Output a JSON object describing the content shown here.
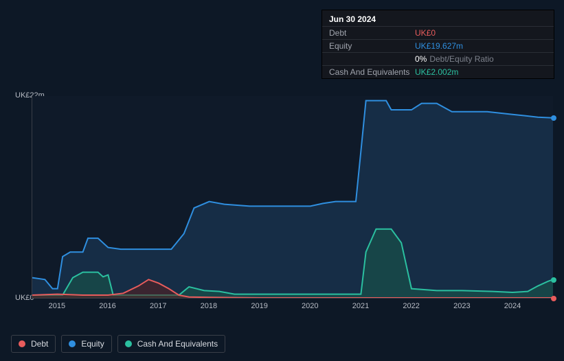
{
  "tooltip": {
    "date": "Jun 30 2024",
    "rows": [
      {
        "label": "Debt",
        "value": "UK£0",
        "color": "#e85c5c"
      },
      {
        "label": "Equity",
        "value": "UK£19.627m",
        "color": "#2f8fe0"
      },
      {
        "label": "",
        "value": "0%",
        "suffix": "Debt/Equity Ratio",
        "color": "#ffffff"
      },
      {
        "label": "Cash And Equivalents",
        "value": "UK£2.002m",
        "color": "#2bc0a0"
      }
    ]
  },
  "chart": {
    "type": "area",
    "background_color": "#0f1a29",
    "grid_color": "#3a3f48",
    "ylim": [
      0,
      22
    ],
    "y_ticks": [
      {
        "v": 22,
        "label": "UK£22m"
      },
      {
        "v": 0,
        "label": "UK£0"
      }
    ],
    "xlim": [
      2014.5,
      2024.8
    ],
    "x_ticks": [
      "2015",
      "2016",
      "2017",
      "2018",
      "2019",
      "2020",
      "2021",
      "2022",
      "2023",
      "2024"
    ],
    "series": {
      "equity": {
        "label": "Equity",
        "stroke": "#2f8fe0",
        "fill": "#1a3a5a",
        "fill_opacity": 0.6,
        "line_width": 2,
        "points": [
          [
            2014.5,
            2.2
          ],
          [
            2014.75,
            2.0
          ],
          [
            2014.9,
            1.0
          ],
          [
            2015.0,
            1.0
          ],
          [
            2015.1,
            4.5
          ],
          [
            2015.25,
            5.0
          ],
          [
            2015.5,
            5.0
          ],
          [
            2015.6,
            6.5
          ],
          [
            2015.8,
            6.5
          ],
          [
            2016.0,
            5.5
          ],
          [
            2016.25,
            5.3
          ],
          [
            2016.5,
            5.3
          ],
          [
            2016.8,
            5.3
          ],
          [
            2017.25,
            5.3
          ],
          [
            2017.5,
            7.0
          ],
          [
            2017.7,
            9.8
          ],
          [
            2018.0,
            10.5
          ],
          [
            2018.3,
            10.2
          ],
          [
            2018.8,
            10.0
          ],
          [
            2019.5,
            10.0
          ],
          [
            2020.0,
            10.0
          ],
          [
            2020.25,
            10.3
          ],
          [
            2020.5,
            10.5
          ],
          [
            2020.9,
            10.5
          ],
          [
            2021.0,
            16.0
          ],
          [
            2021.1,
            21.5
          ],
          [
            2021.5,
            21.5
          ],
          [
            2021.6,
            20.5
          ],
          [
            2022.0,
            20.5
          ],
          [
            2022.2,
            21.2
          ],
          [
            2022.5,
            21.2
          ],
          [
            2022.8,
            20.3
          ],
          [
            2023.5,
            20.3
          ],
          [
            2024.0,
            20.0
          ],
          [
            2024.5,
            19.7
          ],
          [
            2024.8,
            19.627
          ]
        ]
      },
      "cash": {
        "label": "Cash And Equivalents",
        "stroke": "#2bc0a0",
        "fill": "#1a5a4a",
        "fill_opacity": 0.55,
        "line_width": 2,
        "points": [
          [
            2014.5,
            0.3
          ],
          [
            2014.9,
            0.3
          ],
          [
            2015.1,
            0.3
          ],
          [
            2015.3,
            2.2
          ],
          [
            2015.5,
            2.8
          ],
          [
            2015.8,
            2.8
          ],
          [
            2015.9,
            2.3
          ],
          [
            2016.0,
            2.5
          ],
          [
            2016.1,
            0.3
          ],
          [
            2016.5,
            0.3
          ],
          [
            2017.0,
            0.3
          ],
          [
            2017.4,
            0.3
          ],
          [
            2017.6,
            1.2
          ],
          [
            2017.9,
            0.8
          ],
          [
            2018.2,
            0.7
          ],
          [
            2018.5,
            0.4
          ],
          [
            2019.0,
            0.4
          ],
          [
            2020.0,
            0.4
          ],
          [
            2020.6,
            0.4
          ],
          [
            2020.9,
            0.4
          ],
          [
            2021.0,
            0.4
          ],
          [
            2021.1,
            5.0
          ],
          [
            2021.3,
            7.5
          ],
          [
            2021.6,
            7.5
          ],
          [
            2021.8,
            6.0
          ],
          [
            2022.0,
            1.0
          ],
          [
            2022.5,
            0.8
          ],
          [
            2023.0,
            0.8
          ],
          [
            2023.6,
            0.7
          ],
          [
            2024.0,
            0.6
          ],
          [
            2024.3,
            0.7
          ],
          [
            2024.5,
            1.3
          ],
          [
            2024.7,
            1.8
          ],
          [
            2024.8,
            2.002
          ]
        ]
      },
      "debt": {
        "label": "Debt",
        "stroke": "#e85c5c",
        "fill": "#5a1f1f",
        "fill_opacity": 0.55,
        "line_width": 2,
        "points": [
          [
            2014.5,
            0.3
          ],
          [
            2015.0,
            0.4
          ],
          [
            2015.5,
            0.3
          ],
          [
            2016.0,
            0.3
          ],
          [
            2016.3,
            0.5
          ],
          [
            2016.6,
            1.3
          ],
          [
            2016.8,
            2.0
          ],
          [
            2017.0,
            1.6
          ],
          [
            2017.2,
            1.0
          ],
          [
            2017.4,
            0.3
          ],
          [
            2017.6,
            0.1
          ],
          [
            2018.0,
            0.05
          ],
          [
            2019.0,
            0.0
          ],
          [
            2020.0,
            0.0
          ],
          [
            2021.0,
            0.0
          ],
          [
            2022.0,
            0.0
          ],
          [
            2023.0,
            0.0
          ],
          [
            2024.0,
            0.0
          ],
          [
            2024.8,
            0.0
          ]
        ]
      }
    },
    "order": [
      "equity",
      "cash",
      "debt"
    ],
    "legend_order": [
      "debt",
      "equity",
      "cash"
    ]
  },
  "legend": {
    "debt": {
      "label": "Debt",
      "color": "#e85c5c"
    },
    "equity": {
      "label": "Equity",
      "color": "#2f8fe0"
    },
    "cash": {
      "label": "Cash And Equivalents",
      "color": "#2bc0a0"
    }
  }
}
